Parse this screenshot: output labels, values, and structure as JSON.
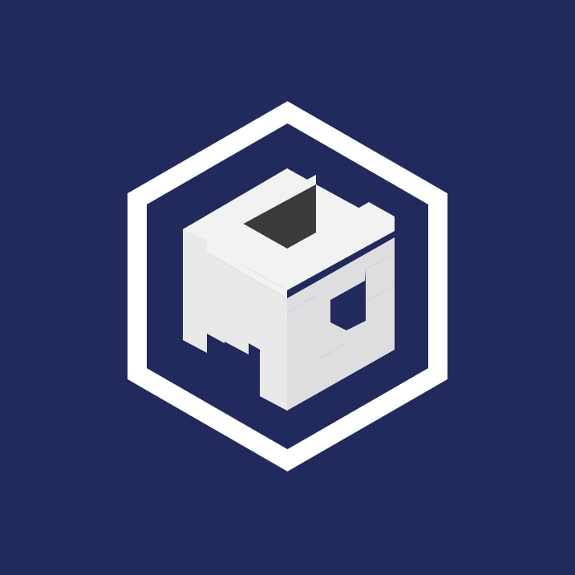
{
  "colors": {
    "background": "#22295c",
    "hexagon_stroke": "#ffffff",
    "face_top": "#f2f2f3",
    "face_left": "#e9e9ea",
    "face_right": "#dedee0",
    "shadow_dark": "#2a2a2c",
    "shadow_mid": "#3a3a3c",
    "shadow_light": "#4a4a4c"
  },
  "logo": {
    "icon": "hexagon-cube-monogram-icon"
  }
}
